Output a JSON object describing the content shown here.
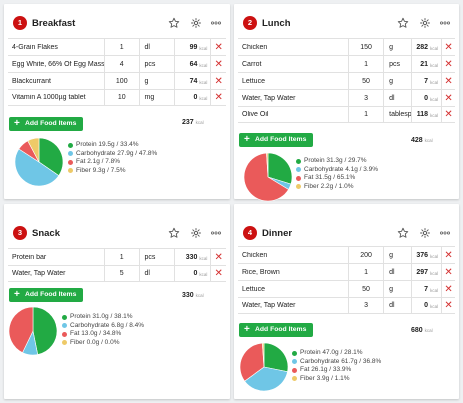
{
  "colors": {
    "protein": "#22aa44",
    "carbs": "#6fc6e6",
    "fat": "#ea5a5a",
    "fiber": "#eeca68"
  },
  "add_label": "Add Food Items",
  "kcal_unit": "kcal",
  "meals": [
    {
      "number": "1",
      "title": "Breakfast",
      "items": [
        {
          "name": "4-Grain Flakes",
          "qty": "1",
          "unit": "dl",
          "kcal": "99"
        },
        {
          "name": "Egg White, 66% Of Egg Mass",
          "qty": "4",
          "unit": "pcs",
          "kcal": "64"
        },
        {
          "name": "Blackcurrant",
          "qty": "100",
          "unit": "g",
          "kcal": "74"
        },
        {
          "name": "Vitamin A 1000µg tablet",
          "qty": "10",
          "unit": "mg",
          "kcal": "0"
        }
      ],
      "total": "237",
      "legend": [
        {
          "key": "protein",
          "text": "Protein 19.5g / 33.4%"
        },
        {
          "key": "carbs",
          "text": "Carbohydrate 27.9g / 47.8%"
        },
        {
          "key": "fat",
          "text": "Fat 2.1g / 7.8%"
        },
        {
          "key": "fiber",
          "text": "Fiber 9.3g / 7.5%"
        }
      ],
      "pie": [
        33.4,
        47.8,
        7.8,
        7.5
      ]
    },
    {
      "number": "2",
      "title": "Lunch",
      "items": [
        {
          "name": "Chicken",
          "qty": "150",
          "unit": "g",
          "kcal": "282"
        },
        {
          "name": "Carrot",
          "qty": "1",
          "unit": "pcs",
          "kcal": "21"
        },
        {
          "name": "Lettuce",
          "qty": "50",
          "unit": "g",
          "kcal": "7"
        },
        {
          "name": "Water, Tap Water",
          "qty": "3",
          "unit": "dl",
          "kcal": "0"
        },
        {
          "name": "Olive Oil",
          "qty": "1",
          "unit": "tablespoon",
          "kcal": "118"
        }
      ],
      "total": "428",
      "legend": [
        {
          "key": "protein",
          "text": "Protein 31.3g / 29.7%"
        },
        {
          "key": "carbs",
          "text": "Carbohydrate 4.1g / 3.9%"
        },
        {
          "key": "fat",
          "text": "Fat 31.5g / 65.1%"
        },
        {
          "key": "fiber",
          "text": "Fiber 2.2g / 1.0%"
        }
      ],
      "pie": [
        29.7,
        3.9,
        65.1,
        1.0
      ]
    },
    {
      "number": "3",
      "title": "Snack",
      "items": [
        {
          "name": "Protein bar",
          "qty": "1",
          "unit": "pcs",
          "kcal": "330"
        },
        {
          "name": "Water, Tap Water",
          "qty": "5",
          "unit": "dl",
          "kcal": "0"
        }
      ],
      "total": "330",
      "legend": [
        {
          "key": "protein",
          "text": "Protein 31.0g / 38.1%"
        },
        {
          "key": "carbs",
          "text": "Carbohydrate 6.8g / 8.4%"
        },
        {
          "key": "fat",
          "text": "Fat 13.0g / 34.8%"
        },
        {
          "key": "fiber",
          "text": "Fiber 0.0g / 0.0%"
        }
      ],
      "pie": [
        38.1,
        8.4,
        34.8,
        0.0
      ]
    },
    {
      "number": "4",
      "title": "Dinner",
      "items": [
        {
          "name": "Chicken",
          "qty": "200",
          "unit": "g",
          "kcal": "376"
        },
        {
          "name": "Rice, Brown",
          "qty": "1",
          "unit": "dl",
          "kcal": "297"
        },
        {
          "name": "Lettuce",
          "qty": "50",
          "unit": "g",
          "kcal": "7"
        },
        {
          "name": "Water, Tap Water",
          "qty": "3",
          "unit": "dl",
          "kcal": "0"
        }
      ],
      "total": "680",
      "legend": [
        {
          "key": "protein",
          "text": "Protein 47.0g / 28.1%"
        },
        {
          "key": "carbs",
          "text": "Carbohydrate 61.7g / 36.8%"
        },
        {
          "key": "fat",
          "text": "Fat 26.1g / 33.9%"
        },
        {
          "key": "fiber",
          "text": "Fiber 3.9g / 1.1%"
        }
      ],
      "pie": [
        28.1,
        36.8,
        33.9,
        1.1
      ]
    }
  ]
}
